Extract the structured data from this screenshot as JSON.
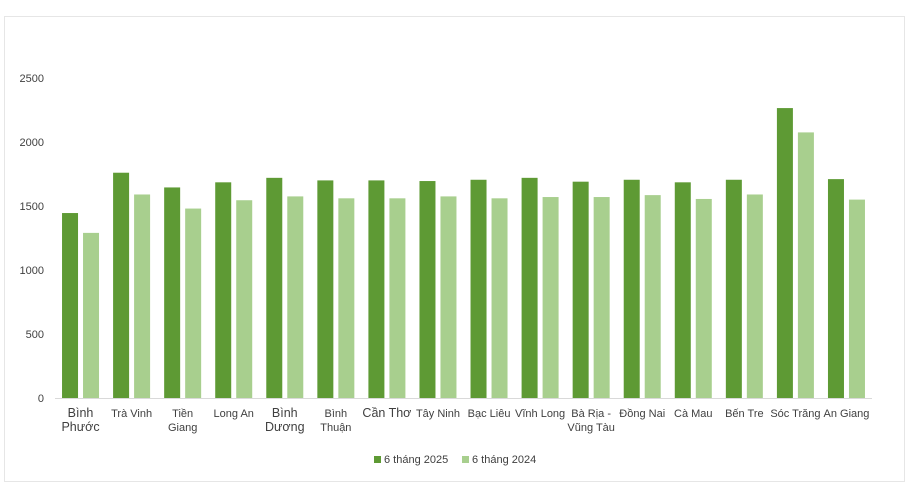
{
  "chart_data": {
    "type": "bar",
    "title": "",
    "xlabel": "",
    "ylabel": "",
    "ylim": [
      0,
      2500
    ],
    "yticks": [
      0,
      500,
      1000,
      1500,
      2000,
      2500
    ],
    "grid": false,
    "legend_position": "bottom",
    "categories": [
      "Bình Phước",
      "Trà Vinh",
      "Tiền Giang",
      "Long An",
      "Bình Dương",
      "Bình Thuận",
      "Cần Thơ",
      "Tây Ninh",
      "Bạc Liêu",
      "Vĩnh Long",
      "Bà Rịa - Vũng Tàu",
      "Đồng Nai",
      "Cà Mau",
      "Bến Tre",
      "Sóc Trăng",
      "An Giang"
    ],
    "category_lines": [
      [
        "Bình",
        "Phước"
      ],
      [
        "Trà Vinh"
      ],
      [
        "Tiền",
        "Giang"
      ],
      [
        "Long An"
      ],
      [
        "Bình",
        "Dương"
      ],
      [
        "Bình",
        "Thuận"
      ],
      [
        "Cần Thơ"
      ],
      [
        "Tây Ninh"
      ],
      [
        "Bạc Liêu"
      ],
      [
        "Vĩnh Long"
      ],
      [
        "Bà Rịa -",
        "Vũng Tàu"
      ],
      [
        "Đồng Nai"
      ],
      [
        "Cà Mau"
      ],
      [
        "Bến Tre"
      ],
      [
        "Sóc Trăng"
      ],
      [
        "An Giang"
      ]
    ],
    "series": [
      {
        "name": "6 tháng 2025",
        "color": "#5e9a34",
        "values": [
          1445,
          1760,
          1645,
          1685,
          1720,
          1700,
          1700,
          1695,
          1705,
          1720,
          1690,
          1705,
          1685,
          1705,
          2265,
          1710
        ]
      },
      {
        "name": "6 tháng 2024",
        "color": "#a8cf8e",
        "values": [
          1290,
          1590,
          1480,
          1545,
          1575,
          1560,
          1560,
          1575,
          1560,
          1570,
          1570,
          1585,
          1555,
          1590,
          2075,
          1550
        ]
      }
    ]
  }
}
